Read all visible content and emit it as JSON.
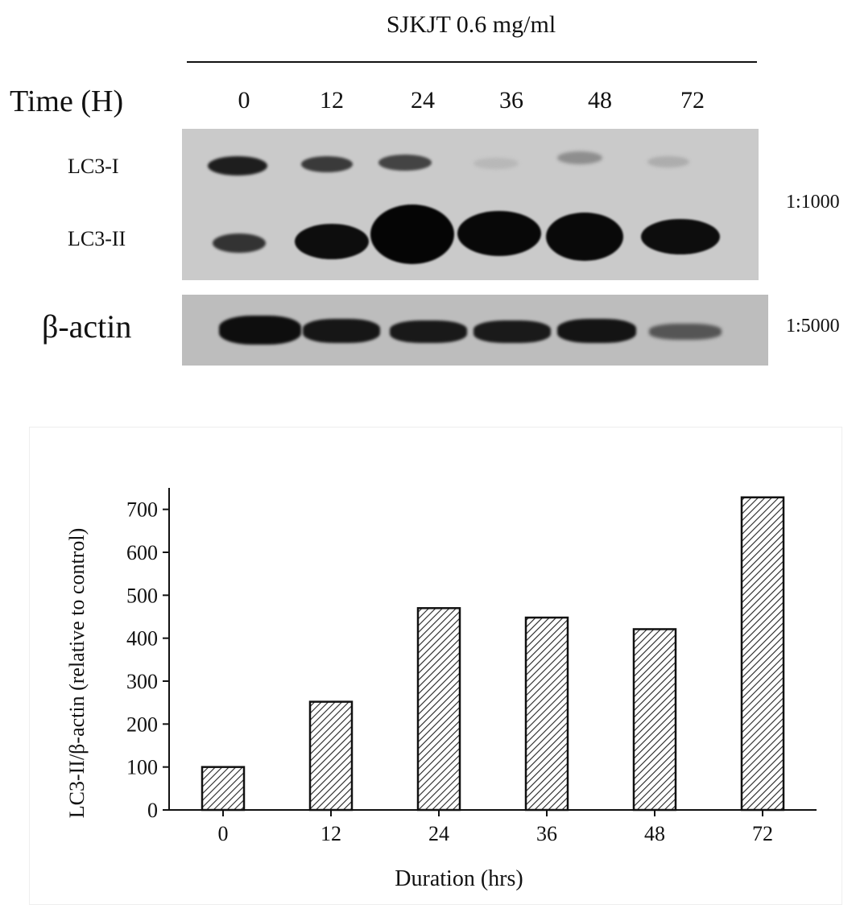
{
  "blot": {
    "treatment": "SJKJT 0.6 mg/ml",
    "time_label": "Time (H)",
    "time_points": [
      "0",
      "12",
      "24",
      "36",
      "48",
      "72"
    ],
    "rows": {
      "lc3_i": "LC3-I",
      "lc3_ii": "LC3-II",
      "beta_actin": "β-actin"
    },
    "dilutions": {
      "lc3": "1:1000",
      "actin": "1:5000"
    }
  },
  "chart_data": {
    "type": "bar",
    "categories": [
      "0",
      "12",
      "24",
      "36",
      "48",
      "72"
    ],
    "values": [
      100,
      252,
      470,
      448,
      421,
      728
    ],
    "xlabel": "Duration (hrs)",
    "ylabel": "LC3-II/β-actin (relative to control)",
    "ylim": [
      0,
      750
    ],
    "yticks": [
      0,
      100,
      200,
      300,
      400,
      500,
      600,
      700
    ],
    "bar_fill": "diagonal-hatch",
    "grid": false
  }
}
